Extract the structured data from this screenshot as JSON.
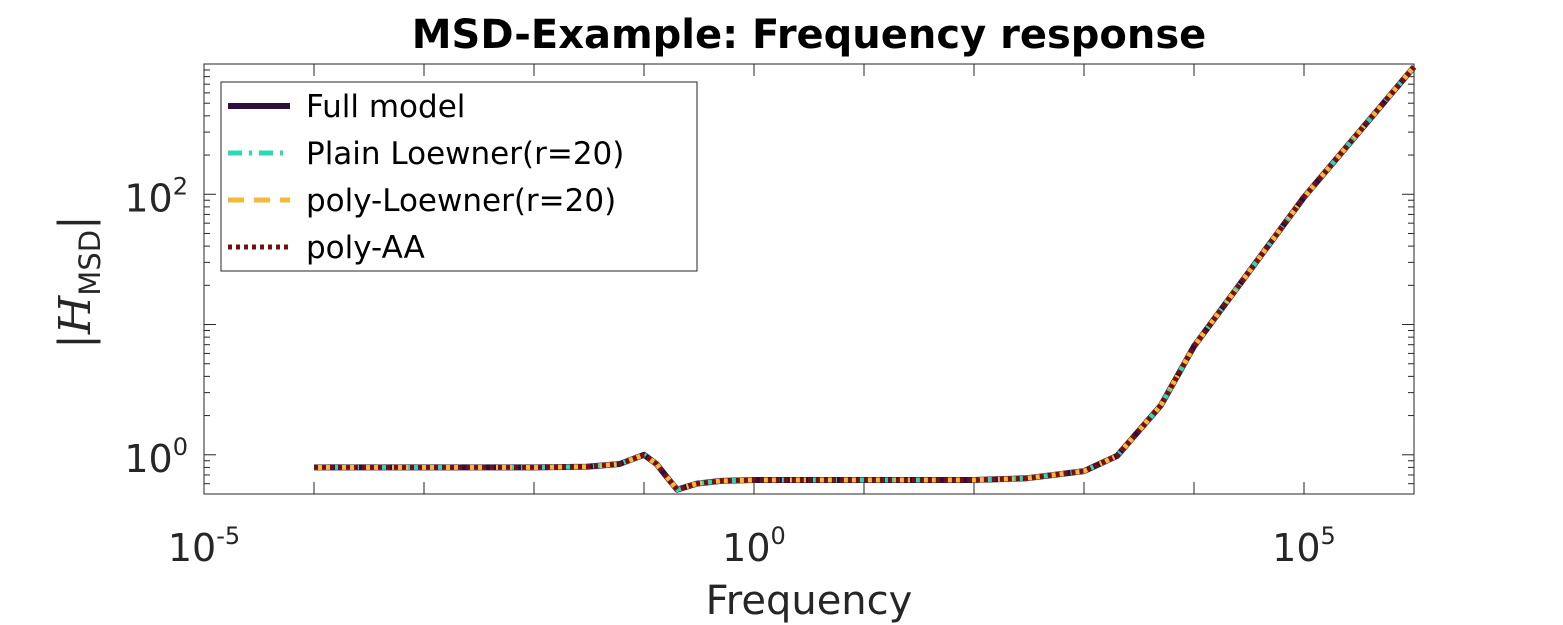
{
  "chart_data": {
    "type": "line",
    "title": "MSD-Example: Frequency response",
    "xlabel": "Frequency",
    "ylabel": "|H",
    "ylabel_subscript": "MSD",
    "ylabel_close": "|",
    "x_scale": "log",
    "y_scale": "log",
    "xlim": [
      1e-05,
      1000000.0
    ],
    "ylim": [
      0.5,
      1000
    ],
    "x_ticks": [
      {
        "value": 1e-05,
        "base": "10",
        "exp": "-5"
      },
      {
        "value": 1,
        "base": "10",
        "exp": "0"
      },
      {
        "value": 100000.0,
        "base": "10",
        "exp": "5"
      }
    ],
    "y_ticks": [
      {
        "value": 1,
        "base": "10",
        "exp": "0"
      },
      {
        "value": 100,
        "base": "10",
        "exp": "2"
      }
    ],
    "grid": false,
    "legend_position": "top-left",
    "x": [
      0.0001,
      0.001,
      0.01,
      0.03,
      0.06,
      0.1,
      0.13,
      0.16,
      0.2,
      0.3,
      0.5,
      1,
      2,
      10,
      100,
      300,
      1000,
      2000,
      5000,
      10000,
      100000,
      1000000
    ],
    "series": [
      {
        "name": "Full model",
        "color": "#2d0e3d",
        "style": "solid",
        "values": [
          0.8,
          0.8,
          0.8,
          0.81,
          0.85,
          1.0,
          0.85,
          0.68,
          0.54,
          0.6,
          0.63,
          0.64,
          0.64,
          0.64,
          0.64,
          0.66,
          0.75,
          0.98,
          2.4,
          6.8,
          95,
          950
        ]
      },
      {
        "name": "Plain Loewner(r=20)",
        "color": "#2ad9b5",
        "style": "dashdot",
        "values": [
          0.8,
          0.8,
          0.8,
          0.81,
          0.85,
          1.0,
          0.85,
          0.68,
          0.54,
          0.6,
          0.63,
          0.64,
          0.64,
          0.64,
          0.64,
          0.66,
          0.75,
          0.98,
          2.4,
          6.8,
          95,
          950
        ]
      },
      {
        "name": "poly-Loewner(r=20)",
        "color": "#f5b93a",
        "style": "dashed",
        "values": [
          0.8,
          0.8,
          0.8,
          0.81,
          0.85,
          1.0,
          0.85,
          0.68,
          0.54,
          0.6,
          0.63,
          0.64,
          0.64,
          0.64,
          0.64,
          0.66,
          0.75,
          0.98,
          2.4,
          6.8,
          95,
          950
        ]
      },
      {
        "name": "poly-AA",
        "color": "#7a0d0d",
        "style": "dotted",
        "values": [
          0.8,
          0.8,
          0.8,
          0.81,
          0.85,
          1.0,
          0.85,
          0.68,
          0.54,
          0.6,
          0.63,
          0.64,
          0.64,
          0.64,
          0.64,
          0.66,
          0.75,
          0.98,
          2.4,
          6.8,
          95,
          950
        ]
      }
    ]
  }
}
